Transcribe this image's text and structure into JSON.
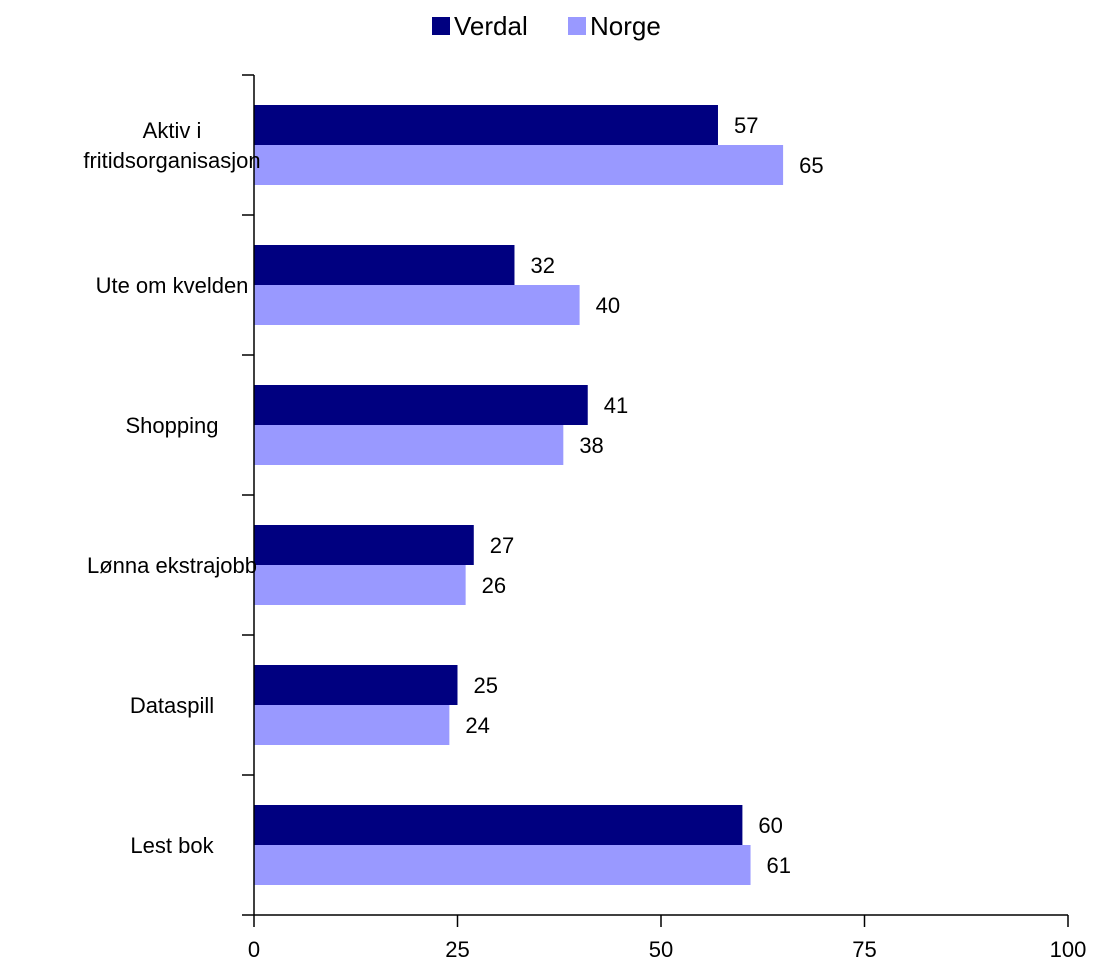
{
  "chart_data": {
    "type": "bar",
    "orientation": "horizontal",
    "categories": [
      [
        "Aktiv i",
        "fritidsorganisasjon"
      ],
      [
        "Ute om kvelden"
      ],
      [
        "Shopping"
      ],
      [
        "Lønna ekstrajobb"
      ],
      [
        "Dataspill"
      ],
      [
        "Lest bok"
      ]
    ],
    "series": [
      {
        "name": "Verdal",
        "color": "#000080",
        "values": [
          57,
          32,
          41,
          27,
          25,
          60
        ]
      },
      {
        "name": "Norge",
        "color": "#9999ff",
        "values": [
          65,
          40,
          38,
          26,
          24,
          61
        ]
      }
    ],
    "xlim": [
      0,
      100
    ],
    "xticks": [
      0,
      25,
      50,
      75,
      100
    ],
    "xlabel": "",
    "ylabel": "",
    "title": "",
    "legend_position": "top",
    "grid": false,
    "data_labels": true
  }
}
